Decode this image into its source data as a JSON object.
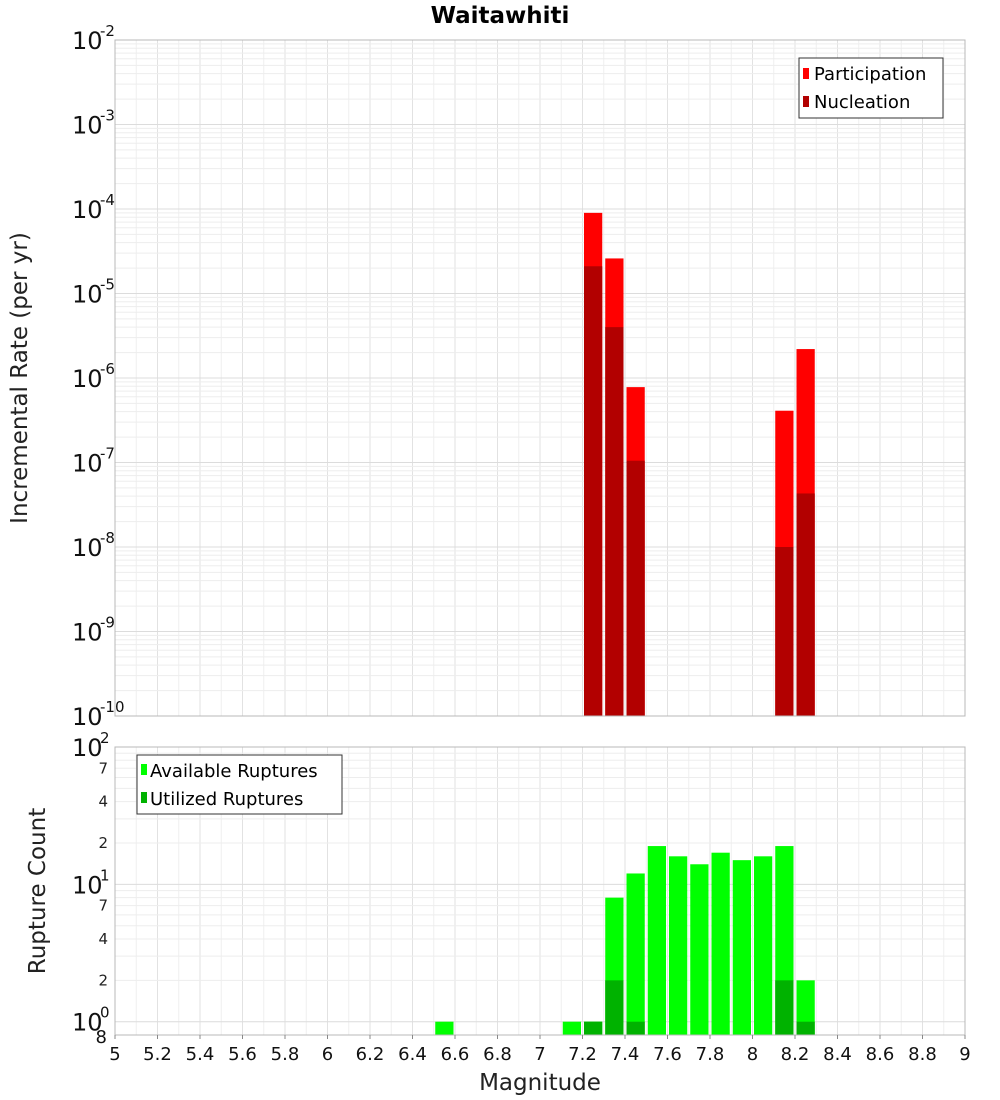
{
  "chart_data": [
    {
      "type": "bar",
      "scale": "log",
      "title": "Waitawhiti",
      "xlabel": "",
      "ylabel": "Incremental Rate (per yr)",
      "xlim": [
        5,
        9
      ],
      "ylim_exponents": [
        -10,
        -2
      ],
      "y_tick_labels": [
        "10-10",
        "10-9",
        "10-8",
        "10-7",
        "10-6",
        "10-5",
        "10-4",
        "10-3",
        "10-2"
      ],
      "y_tick_bases": [
        "10",
        "10",
        "10",
        "10",
        "10",
        "10",
        "10",
        "10",
        "10"
      ],
      "y_tick_exponents": [
        "-10",
        "-9",
        "-8",
        "-7",
        "-6",
        "-5",
        "-4",
        "-3",
        "-2"
      ],
      "legend": {
        "position": "top-right",
        "entries": [
          "Participation",
          "Nucleation"
        ]
      },
      "bin_width": 0.1,
      "series": [
        {
          "name": "Participation",
          "color": "#ff0000",
          "x": [
            7.25,
            7.35,
            7.45,
            8.15,
            8.25
          ],
          "values": [
            9e-05,
            2.6e-05,
            7.8e-07,
            4.1e-07,
            2.2e-06
          ]
        },
        {
          "name": "Nucleation",
          "color": "#b20000",
          "x": [
            7.25,
            7.35,
            7.45,
            8.15,
            8.25
          ],
          "values": [
            2.1e-05,
            4e-06,
            1.05e-07,
            1e-08,
            4.3e-08
          ]
        }
      ]
    },
    {
      "type": "bar",
      "scale": "log",
      "title": "",
      "xlabel": "Magnitude",
      "ylabel": "Rupture Count",
      "xlim": [
        5,
        9
      ],
      "x_tick_labels": [
        "5",
        "5.2",
        "5.4",
        "5.6",
        "5.8",
        "6",
        "6.2",
        "6.4",
        "6.6",
        "6.8",
        "7",
        "7.2",
        "7.4",
        "7.6",
        "7.8",
        "8",
        "8.2",
        "8.4",
        "8.6",
        "8.8",
        "9"
      ],
      "ylim": [
        0.8,
        100
      ],
      "y_tick_labels": [
        "100",
        "101",
        "102"
      ],
      "y_tick_bases": [
        "10",
        "10",
        "10"
      ],
      "y_tick_exponents": [
        "0",
        "1",
        "2"
      ],
      "y_minor_labels": [
        "8",
        "2",
        "4",
        "7",
        "2",
        "4",
        "7"
      ],
      "legend": {
        "position": "top-left",
        "entries": [
          "Available Ruptures",
          "Utilized Ruptures"
        ]
      },
      "bin_width": 0.1,
      "series": [
        {
          "name": "Available Ruptures",
          "color": "#00ff00",
          "x": [
            6.55,
            7.15,
            7.25,
            7.35,
            7.45,
            7.55,
            7.65,
            7.75,
            7.85,
            7.95,
            8.05,
            8.15,
            8.25
          ],
          "values": [
            1,
            1,
            1,
            8,
            12,
            19,
            16,
            14,
            17,
            15,
            16,
            19,
            2
          ]
        },
        {
          "name": "Utilized Ruptures",
          "color": "#00b200",
          "x": [
            7.25,
            7.35,
            7.45,
            8.15,
            8.25
          ],
          "values": [
            1,
            2,
            1,
            2,
            1
          ]
        }
      ]
    }
  ]
}
